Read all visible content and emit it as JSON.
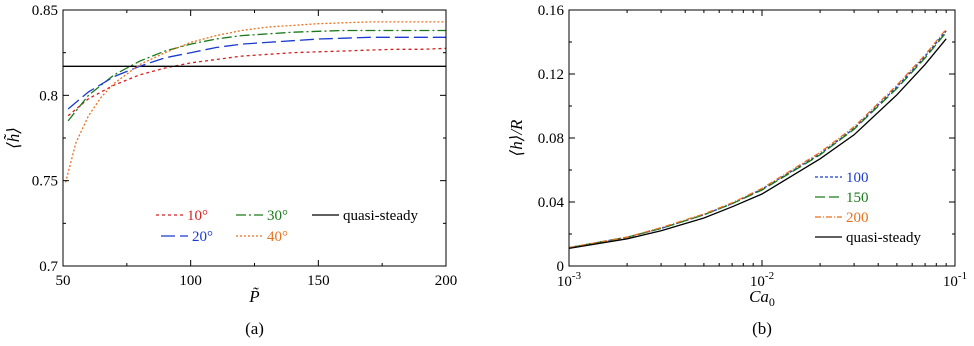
{
  "chart_data": [
    {
      "type": "line",
      "caption": "(a)",
      "xlabel": "P̃",
      "ylabel": "⟨h̃⟩",
      "xlim": [
        50,
        200
      ],
      "ylim": [
        0.7,
        0.85
      ],
      "xticks": [
        50,
        100,
        150,
        200
      ],
      "xtick_labels": [
        "50",
        "100",
        "150",
        "200"
      ],
      "yticks": [
        0.7,
        0.75,
        0.8,
        0.85
      ],
      "ytick_labels": [
        "0.7",
        "0.75",
        "0.8",
        "0.85"
      ],
      "grid": false,
      "legend_placement": "bottom-right",
      "series": [
        {
          "name": "10°",
          "color": "#d42020",
          "dash": "3,3",
          "x": [
            52,
            60,
            70,
            80,
            90,
            100,
            110,
            120,
            130,
            140,
            150,
            160,
            170,
            180,
            190,
            200
          ],
          "y": [
            0.788,
            0.798,
            0.806,
            0.812,
            0.816,
            0.819,
            0.821,
            0.823,
            0.824,
            0.825,
            0.8255,
            0.826,
            0.8265,
            0.827,
            0.827,
            0.8275
          ]
        },
        {
          "name": "30°",
          "color": "#1a7a1a",
          "dash": "10,3,2,3",
          "x": [
            52,
            60,
            70,
            80,
            90,
            100,
            110,
            120,
            130,
            140,
            150,
            160,
            170,
            180,
            190,
            200
          ],
          "y": [
            0.785,
            0.8,
            0.812,
            0.82,
            0.826,
            0.83,
            0.833,
            0.835,
            0.836,
            0.837,
            0.8375,
            0.838,
            0.838,
            0.838,
            0.838,
            0.838
          ]
        },
        {
          "name": "quasi-steady",
          "color": "#000000",
          "dash": "",
          "x": [
            50,
            200
          ],
          "y": [
            0.817,
            0.817
          ]
        },
        {
          "name": "20°",
          "color": "#1a3ad0",
          "dash": "14,5",
          "x": [
            52,
            60,
            70,
            80,
            90,
            100,
            110,
            120,
            130,
            140,
            150,
            160,
            170,
            180,
            190,
            200
          ],
          "y": [
            0.792,
            0.802,
            0.811,
            0.817,
            0.822,
            0.825,
            0.828,
            0.83,
            0.831,
            0.832,
            0.833,
            0.8335,
            0.834,
            0.834,
            0.834,
            0.834
          ]
        },
        {
          "name": "40°",
          "color": "#e8711e",
          "dash": "2,2",
          "x": [
            51,
            55,
            60,
            65,
            70,
            80,
            90,
            100,
            110,
            120,
            130,
            140,
            150,
            160,
            170,
            180,
            190,
            200
          ],
          "y": [
            0.749,
            0.772,
            0.788,
            0.799,
            0.807,
            0.818,
            0.825,
            0.831,
            0.835,
            0.838,
            0.84,
            0.841,
            0.842,
            0.8425,
            0.843,
            0.843,
            0.843,
            0.843
          ]
        }
      ]
    },
    {
      "type": "line",
      "caption": "(b)",
      "xlabel": "Ca",
      "xlabel_sub": "0",
      "ylabel": "⟨h⟩/R",
      "xscale": "log",
      "xlim": [
        0.001,
        0.1
      ],
      "ylim": [
        0,
        0.16
      ],
      "xtick_labels": [
        {
          "base": "10",
          "exp": "-3"
        },
        {
          "base": "10",
          "exp": "-2"
        },
        {
          "base": "10",
          "exp": "-1"
        }
      ],
      "yticks": [
        0,
        0.04,
        0.08,
        0.12,
        0.16
      ],
      "ytick_labels": [
        "0",
        "0.04",
        "0.08",
        "0.12",
        "0.16"
      ],
      "grid": false,
      "legend_placement": "bottom-right",
      "series": [
        {
          "name": "100",
          "color": "#1a3ad0",
          "dash": "3,2",
          "x": [
            0.001,
            0.002,
            0.003,
            0.005,
            0.007,
            0.01,
            0.02,
            0.03,
            0.05,
            0.07,
            0.09
          ],
          "y": [
            0.0115,
            0.018,
            0.0235,
            0.032,
            0.039,
            0.048,
            0.07,
            0.086,
            0.112,
            0.131,
            0.147
          ]
        },
        {
          "name": "150",
          "color": "#1a7a1a",
          "dash": "10,4",
          "x": [
            0.001,
            0.002,
            0.003,
            0.005,
            0.007,
            0.01,
            0.02,
            0.03,
            0.05,
            0.07,
            0.09
          ],
          "y": [
            0.0115,
            0.018,
            0.0235,
            0.032,
            0.039,
            0.0475,
            0.0695,
            0.0855,
            0.111,
            0.13,
            0.146
          ]
        },
        {
          "name": "200",
          "color": "#e8711e",
          "dash": "6,2,1,2",
          "x": [
            0.001,
            0.002,
            0.003,
            0.005,
            0.007,
            0.01,
            0.02,
            0.03,
            0.05,
            0.07,
            0.09
          ],
          "y": [
            0.0115,
            0.018,
            0.024,
            0.0325,
            0.0395,
            0.0485,
            0.071,
            0.087,
            0.113,
            0.132,
            0.148
          ]
        },
        {
          "name": "quasi-steady",
          "color": "#000000",
          "dash": "",
          "x": [
            0.001,
            0.002,
            0.003,
            0.005,
            0.007,
            0.01,
            0.02,
            0.03,
            0.05,
            0.07,
            0.09
          ],
          "y": [
            0.011,
            0.017,
            0.022,
            0.03,
            0.037,
            0.045,
            0.067,
            0.082,
            0.107,
            0.126,
            0.142
          ]
        }
      ]
    }
  ]
}
